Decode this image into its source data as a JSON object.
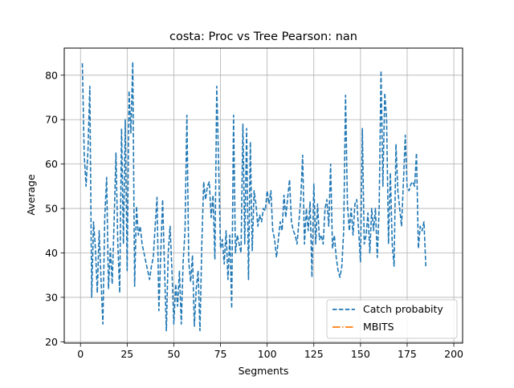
{
  "chart_data": {
    "type": "line",
    "title": "costa: Proc vs Tree Pearson: nan",
    "xlabel": "Segments",
    "ylabel": "Average",
    "xlim": [
      -8.7,
      204.7
    ],
    "ylim": [
      19.7,
      86.1
    ],
    "xticks": [
      0,
      25,
      50,
      75,
      100,
      125,
      150,
      175,
      200
    ],
    "yticks": [
      20,
      30,
      40,
      50,
      60,
      70,
      80
    ],
    "grid": true,
    "legend_position": "bottom-right",
    "series": [
      {
        "name": "Catch probabity",
        "color": "#1f77b4",
        "style": "dashed",
        "points": [
          [
            1,
            82.7
          ],
          [
            2,
            62
          ],
          [
            3,
            55
          ],
          [
            4,
            63
          ],
          [
            5,
            77.5
          ],
          [
            6,
            30
          ],
          [
            7,
            47
          ],
          [
            8,
            41
          ],
          [
            9,
            31
          ],
          [
            10,
            45
          ],
          [
            11,
            34
          ],
          [
            12,
            24
          ],
          [
            13,
            48
          ],
          [
            14,
            57
          ],
          [
            15,
            32
          ],
          [
            16,
            41
          ],
          [
            17,
            33
          ],
          [
            18,
            47
          ],
          [
            19,
            62.5
          ],
          [
            20,
            42
          ],
          [
            21,
            31
          ],
          [
            22,
            68
          ],
          [
            23,
            42
          ],
          [
            24,
            70
          ],
          [
            25,
            36
          ],
          [
            26,
            76.5
          ],
          [
            27,
            67
          ],
          [
            28,
            83
          ],
          [
            29,
            32.5
          ],
          [
            30,
            50.5
          ],
          [
            31,
            44
          ],
          [
            32,
            46
          ],
          [
            33,
            42
          ],
          [
            34,
            40
          ],
          [
            35,
            38
          ],
          [
            36,
            36
          ],
          [
            37,
            34
          ],
          [
            38,
            37
          ],
          [
            39,
            39
          ],
          [
            40,
            46
          ],
          [
            41,
            52.5
          ],
          [
            42,
            27
          ],
          [
            43,
            40
          ],
          [
            44,
            52
          ],
          [
            45,
            37
          ],
          [
            46,
            22.5
          ],
          [
            47,
            40
          ],
          [
            48,
            46
          ],
          [
            49,
            36
          ],
          [
            50,
            24
          ],
          [
            51,
            33
          ],
          [
            52,
            28
          ],
          [
            53,
            36
          ],
          [
            54,
            24
          ],
          [
            55,
            38
          ],
          [
            56,
            45
          ],
          [
            57,
            71
          ],
          [
            58,
            38
          ],
          [
            59,
            33.5
          ],
          [
            60,
            39.5
          ],
          [
            61,
            23.5
          ],
          [
            62,
            32
          ],
          [
            63,
            36
          ],
          [
            64,
            22.5
          ],
          [
            65,
            42
          ],
          [
            66,
            56
          ],
          [
            67,
            52
          ],
          [
            68,
            55
          ],
          [
            69,
            56
          ],
          [
            70,
            48
          ],
          [
            71,
            53
          ],
          [
            72,
            38.5
          ],
          [
            73,
            77.5
          ],
          [
            74,
            60
          ],
          [
            75,
            41
          ],
          [
            76,
            43
          ],
          [
            77,
            37.5
          ],
          [
            78,
            45
          ],
          [
            79,
            34
          ],
          [
            80,
            44
          ],
          [
            81,
            27.5
          ],
          [
            82,
            71
          ],
          [
            83,
            40
          ],
          [
            84,
            44
          ],
          [
            85,
            42
          ],
          [
            86,
            40
          ],
          [
            87,
            69
          ],
          [
            88,
            42
          ],
          [
            89,
            68
          ],
          [
            90,
            34
          ],
          [
            91,
            65
          ],
          [
            92,
            40.5
          ],
          [
            93,
            54
          ],
          [
            94,
            51
          ],
          [
            95,
            46
          ],
          [
            96,
            48.5
          ],
          [
            97,
            47
          ],
          [
            98,
            50
          ],
          [
            99,
            49.5
          ],
          [
            100,
            54
          ],
          [
            101,
            51
          ],
          [
            102,
            54
          ],
          [
            103,
            45
          ],
          [
            104,
            43
          ],
          [
            105,
            39
          ],
          [
            106,
            43
          ],
          [
            107,
            47
          ],
          [
            108,
            45
          ],
          [
            109,
            53
          ],
          [
            110,
            48
          ],
          [
            111,
            52.5
          ],
          [
            112,
            56.5
          ],
          [
            113,
            47
          ],
          [
            114,
            45
          ],
          [
            115,
            44
          ],
          [
            116,
            42
          ],
          [
            117,
            47
          ],
          [
            118,
            52
          ],
          [
            119,
            62
          ],
          [
            120,
            42
          ],
          [
            121,
            50
          ],
          [
            122,
            45
          ],
          [
            123,
            51.5
          ],
          [
            124,
            34.5
          ],
          [
            125,
            55.5
          ],
          [
            126,
            42
          ],
          [
            127,
            51
          ],
          [
            128,
            43
          ],
          [
            129,
            44
          ],
          [
            130,
            42
          ],
          [
            131,
            50
          ],
          [
            132,
            52
          ],
          [
            133,
            46
          ],
          [
            134,
            60
          ],
          [
            135,
            41
          ],
          [
            136,
            44
          ],
          [
            137,
            39
          ],
          [
            138,
            36
          ],
          [
            139,
            34.5
          ],
          [
            140,
            37
          ],
          [
            141,
            45
          ],
          [
            142,
            75.5
          ],
          [
            143,
            51
          ],
          [
            144,
            45
          ],
          [
            145,
            50
          ],
          [
            146,
            44
          ],
          [
            147,
            51
          ],
          [
            148,
            52
          ],
          [
            149,
            45
          ],
          [
            150,
            38
          ],
          [
            151,
            68
          ],
          [
            152,
            42
          ],
          [
            153,
            44
          ],
          [
            154,
            49
          ],
          [
            155,
            40
          ],
          [
            156,
            50
          ],
          [
            157,
            45
          ],
          [
            158,
            50
          ],
          [
            159,
            39
          ],
          [
            160,
            50
          ],
          [
            161,
            81
          ],
          [
            162,
            55
          ],
          [
            163,
            76
          ],
          [
            164,
            70
          ],
          [
            165,
            42
          ],
          [
            166,
            58
          ],
          [
            167,
            42
          ],
          [
            168,
            37
          ],
          [
            169,
            64.5
          ],
          [
            170,
            54
          ],
          [
            171,
            50
          ],
          [
            172,
            46
          ],
          [
            173,
            56
          ],
          [
            174,
            66.5
          ],
          [
            175,
            54.5
          ],
          [
            176,
            54
          ],
          [
            177,
            55.5
          ],
          [
            178,
            56
          ],
          [
            179,
            55
          ],
          [
            180,
            62.5
          ],
          [
            181,
            41
          ],
          [
            182,
            46
          ],
          [
            183,
            45
          ],
          [
            184,
            47
          ],
          [
            185,
            37
          ]
        ]
      },
      {
        "name": "MBITS",
        "color": "#ff7f0e",
        "style": "dashdot",
        "points": []
      }
    ]
  }
}
